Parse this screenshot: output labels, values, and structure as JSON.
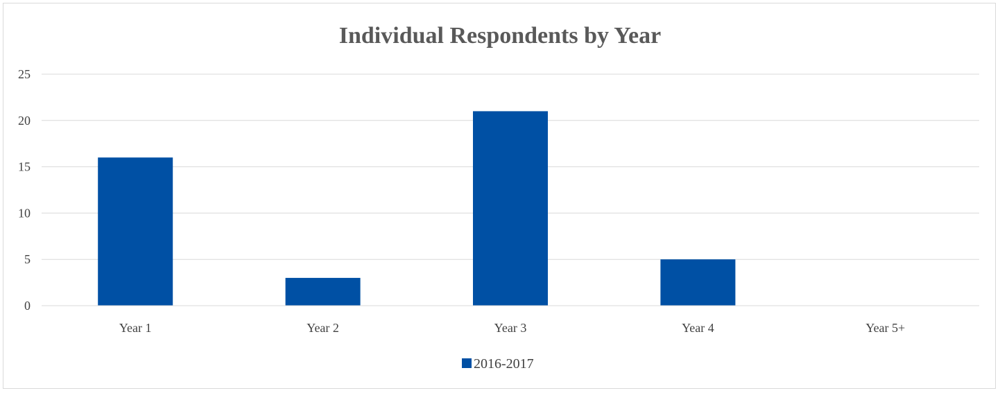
{
  "chart_data": {
    "type": "bar",
    "title": "Individual Respondents by Year",
    "xlabel": "",
    "ylabel": "",
    "categories": [
      "Year 1",
      "Year 2",
      "Year 3",
      "Year 4",
      "Year 5+"
    ],
    "series": [
      {
        "name": "2016-2017",
        "values": [
          16,
          3,
          21,
          5,
          0
        ],
        "color": "#0050a4"
      }
    ],
    "ylim": [
      0,
      25
    ],
    "yticks": [
      0,
      5,
      10,
      15,
      20,
      25
    ],
    "grid": true,
    "legend_position": "bottom"
  }
}
